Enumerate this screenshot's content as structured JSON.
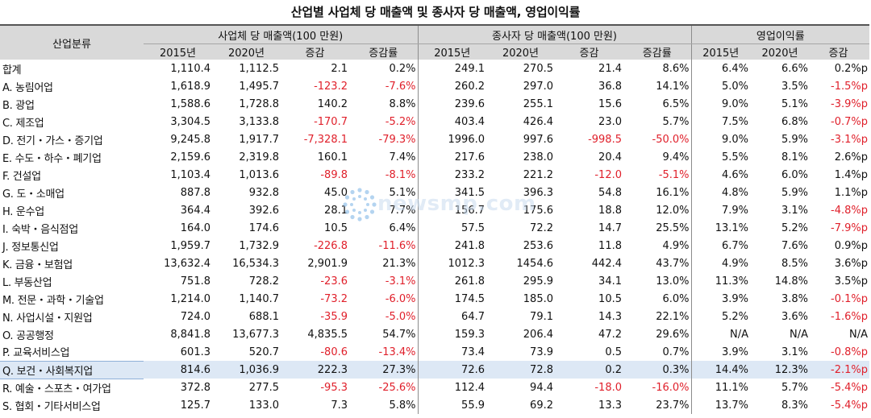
{
  "title": "산업별 사업체 당 매출액 및 종사자 당 매출액, 영업이익률",
  "headers": {
    "category": "산업분류",
    "group1": "사업체 당 매출액(100 만원)",
    "group2": "종사자 당 매출액(100 만원)",
    "group3": "영업이익률",
    "sub": [
      "2015년",
      "2020년",
      "증감",
      "증감률",
      "2015년",
      "2020년",
      "증감",
      "증감률",
      "2015년",
      "2020년",
      "증감"
    ]
  },
  "rows": [
    {
      "cat": "합계",
      "v": [
        "1,110.4",
        "1,112.5",
        "2.1",
        "0.2%",
        "249.1",
        "270.5",
        "21.4",
        "8.6%",
        "6.4%",
        "6.6%",
        "0.2%p"
      ]
    },
    {
      "cat": "A. 농림어업",
      "v": [
        "1,618.9",
        "1,495.7",
        "-123.2",
        "-7.6%",
        "260.2",
        "297.0",
        "36.8",
        "14.1%",
        "5.0%",
        "3.5%",
        "-1.5%p"
      ]
    },
    {
      "cat": "B. 광업",
      "v": [
        "1,588.6",
        "1,728.8",
        "140.2",
        "8.8%",
        "239.6",
        "255.1",
        "15.6",
        "6.5%",
        "9.0%",
        "5.1%",
        "-3.9%p"
      ]
    },
    {
      "cat": "C. 제조업",
      "v": [
        "3,304.5",
        "3,133.8",
        "-170.7",
        "-5.2%",
        "403.4",
        "426.4",
        "23.0",
        "5.7%",
        "7.5%",
        "6.8%",
        "-0.7%p"
      ]
    },
    {
      "cat": "D. 전기・가스・증기업",
      "v": [
        "9,245.8",
        "1,917.7",
        "-7,328.1",
        "-79.3%",
        "1996.0",
        "997.6",
        "-998.5",
        "-50.0%",
        "9.0%",
        "5.9%",
        "-3.1%p"
      ]
    },
    {
      "cat": "E. 수도・하수・폐기업",
      "v": [
        "2,159.6",
        "2,319.8",
        "160.1",
        "7.4%",
        "217.6",
        "238.0",
        "20.4",
        "9.4%",
        "5.5%",
        "8.1%",
        "2.6%p"
      ]
    },
    {
      "cat": "F. 건설업",
      "v": [
        "1,103.4",
        "1,013.6",
        "-89.8",
        "-8.1%",
        "233.2",
        "221.2",
        "-12.0",
        "-5.1%",
        "4.6%",
        "6.0%",
        "1.4%p"
      ]
    },
    {
      "cat": "G. 도・소매업",
      "v": [
        "887.8",
        "932.8",
        "45.0",
        "5.1%",
        "341.5",
        "396.3",
        "54.8",
        "16.1%",
        "4.8%",
        "5.9%",
        "1.1%p"
      ]
    },
    {
      "cat": "H. 운수업",
      "v": [
        "364.4",
        "392.6",
        "28.1",
        "7.7%",
        "156.7",
        "175.6",
        "18.8",
        "12.0%",
        "7.9%",
        "3.1%",
        "-4.8%p"
      ]
    },
    {
      "cat": "I. 숙박・음식점업",
      "v": [
        "164.0",
        "174.6",
        "10.5",
        "6.4%",
        "57.5",
        "72.2",
        "14.7",
        "25.5%",
        "13.1%",
        "5.2%",
        "-7.9%p"
      ]
    },
    {
      "cat": "J. 정보통신업",
      "v": [
        "1,959.7",
        "1,732.9",
        "-226.8",
        "-11.6%",
        "241.8",
        "253.6",
        "11.8",
        "4.9%",
        "6.7%",
        "7.6%",
        "0.9%p"
      ]
    },
    {
      "cat": "K. 금융・보험업",
      "v": [
        "13,632.4",
        "16,534.3",
        "2,901.9",
        "21.3%",
        "1012.3",
        "1454.6",
        "442.4",
        "43.7%",
        "4.9%",
        "8.5%",
        "3.6%p"
      ]
    },
    {
      "cat": "L. 부동산업",
      "v": [
        "751.8",
        "728.2",
        "-23.6",
        "-3.1%",
        "261.8",
        "295.9",
        "34.1",
        "13.0%",
        "11.3%",
        "14.8%",
        "3.5%p"
      ]
    },
    {
      "cat": "M. 전문・과학・기술업",
      "v": [
        "1,214.0",
        "1,140.7",
        "-73.2",
        "-6.0%",
        "174.5",
        "185.0",
        "10.5",
        "6.0%",
        "3.9%",
        "3.8%",
        "-0.1%p"
      ]
    },
    {
      "cat": "N. 사업시설・지원업",
      "v": [
        "724.0",
        "688.1",
        "-35.9",
        "-5.0%",
        "64.7",
        "79.1",
        "14.3",
        "22.1%",
        "5.2%",
        "3.6%",
        "-1.6%p"
      ]
    },
    {
      "cat": "O. 공공행정",
      "v": [
        "8,841.8",
        "13,677.3",
        "4,835.5",
        "54.7%",
        "159.3",
        "206.4",
        "47.2",
        "29.6%",
        "N/A",
        "N/A",
        "N/A"
      ]
    },
    {
      "cat": "P. 교육서비스업",
      "v": [
        "601.3",
        "520.7",
        "-80.6",
        "-13.4%",
        "73.4",
        "73.9",
        "0.5",
        "0.7%",
        "3.9%",
        "3.1%",
        "-0.8%p"
      ]
    },
    {
      "cat": "Q. 보건・사회복지업",
      "v": [
        "814.6",
        "1,036.9",
        "222.3",
        "27.3%",
        "72.6",
        "72.8",
        "0.2",
        "0.3%",
        "14.4%",
        "12.3%",
        "-2.1%p"
      ],
      "highlight": true
    },
    {
      "cat": "R. 예술・스포츠・여가업",
      "v": [
        "372.8",
        "277.5",
        "-95.3",
        "-25.6%",
        "112.4",
        "94.4",
        "-18.0",
        "-16.0%",
        "11.1%",
        "5.7%",
        "-5.4%p"
      ]
    },
    {
      "cat": "S. 협회・기타서비스업",
      "v": [
        "125.7",
        "133.0",
        "7.3",
        "5.8%",
        "55.9",
        "69.2",
        "13.3",
        "23.7%",
        "13.7%",
        "8.3%",
        "-5.4%p"
      ]
    }
  ],
  "watermark": "newsmp.com",
  "colors": {
    "header_bg": "#d9d9d9",
    "negative": "#e0202b",
    "highlight_row": "#dde8f5"
  }
}
